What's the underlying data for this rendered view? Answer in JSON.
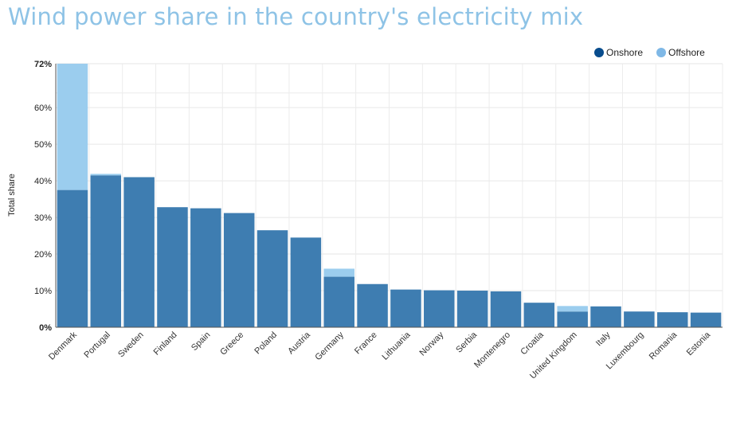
{
  "title": "Wind power share in the country's electricity mix",
  "chart_data": {
    "type": "bar",
    "stacked": true,
    "title": "Wind power share in the country's electricity mix",
    "xlabel": "",
    "ylabel": "Total share",
    "ylim": [
      0,
      72
    ],
    "y_ticks": [
      {
        "value": 0,
        "label": "0%"
      },
      {
        "value": 10,
        "label": "10%"
      },
      {
        "value": 20,
        "label": "20%"
      },
      {
        "value": 30,
        "label": "30%"
      },
      {
        "value": 40,
        "label": "40%"
      },
      {
        "value": 50,
        "label": "50%"
      },
      {
        "value": 60,
        "label": "60%"
      },
      {
        "value": 72,
        "label": "72%"
      }
    ],
    "grid": true,
    "legend_position": "top-right",
    "categories": [
      "Denmark",
      "Portugal",
      "Sweden",
      "Finland",
      "Spain",
      "Greece",
      "Poland",
      "Austria",
      "Germany",
      "France",
      "Lithuania",
      "Norway",
      "Serbia",
      "Montenegro",
      "Croatia",
      "United Kingdom",
      "Italy",
      "Luxembourg",
      "Romania",
      "Estonia"
    ],
    "series": [
      {
        "name": "Onshore",
        "color": "#3e7db1",
        "legend_color": "#084c8d",
        "values": [
          37.5,
          41.5,
          41,
          32.8,
          32.5,
          31.2,
          26.5,
          24.5,
          13.8,
          11.8,
          10.3,
          10.1,
          10.0,
          9.8,
          6.7,
          4.3,
          5.7,
          4.3,
          4.1,
          4.0
        ]
      },
      {
        "name": "Offshore",
        "color": "#9bcdee",
        "legend_color": "#7fb8e6",
        "values": [
          34.5,
          0.4,
          0,
          0,
          0,
          0,
          0,
          0,
          2.2,
          0,
          0,
          0,
          0,
          0,
          0,
          1.5,
          0,
          0,
          0,
          0
        ]
      }
    ]
  }
}
